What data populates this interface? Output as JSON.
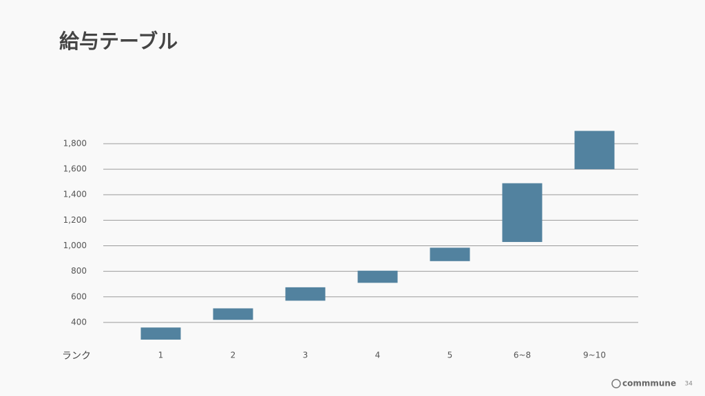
{
  "chart_data": {
    "type": "floating-bar",
    "title": "給与テーブル",
    "x_label": "ランク",
    "categories": [
      "1",
      "2",
      "3",
      "4",
      "5",
      "6~8",
      "9~10"
    ],
    "low": [
      265,
      420,
      570,
      710,
      880,
      1030,
      1600
    ],
    "high": [
      360,
      510,
      675,
      805,
      985,
      1490,
      1900
    ],
    "color": "#52829f",
    "ylim": [
      250,
      1900
    ],
    "yticks": [
      400,
      600,
      800,
      {
        "value": 1000,
        "label": "1,000"
      },
      {
        "value": 1200,
        "label": "1,200"
      },
      {
        "value": 1400,
        "label": "1,400"
      },
      {
        "value": 1600,
        "label": "1,600"
      },
      {
        "value": 1800,
        "label": "1,800"
      }
    ],
    "grid": true
  },
  "footer": {
    "logo": "commmune",
    "page": "34"
  }
}
